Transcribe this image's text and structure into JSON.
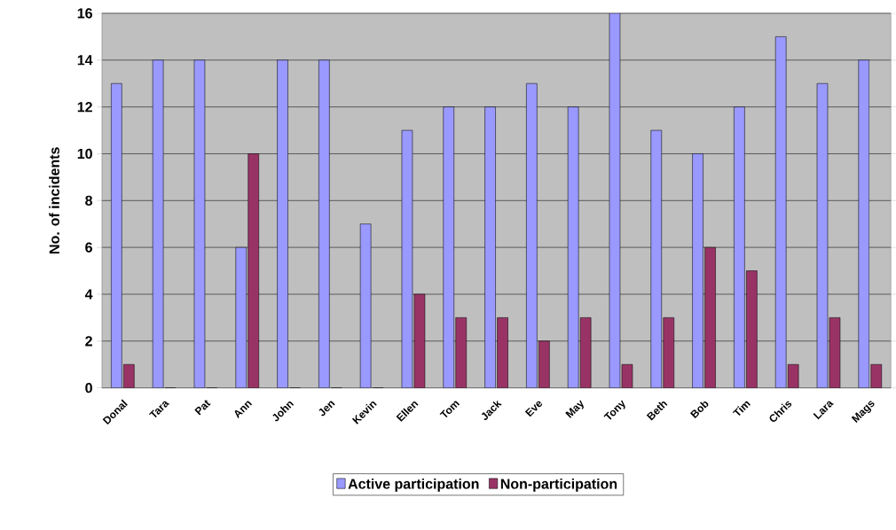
{
  "chart_data": {
    "type": "bar",
    "ylabel": "No. of incidents",
    "categories": [
      "Donal",
      "Tara",
      "Pat",
      "Ann",
      "John",
      "Jen",
      "Kevin",
      "Ellen",
      "Tom",
      "Jack",
      "Eve",
      "May",
      "Tony",
      "Beth",
      "Bob",
      "Tim",
      "Chris",
      "Lara",
      "Mags"
    ],
    "series": [
      {
        "name": "Active participation",
        "color": "#9999ff",
        "values": [
          13,
          14,
          14,
          6,
          14,
          14,
          7,
          11,
          12,
          12,
          13,
          12,
          16,
          11,
          10,
          12,
          15,
          13,
          14
        ]
      },
      {
        "name": "Non-participation",
        "color": "#993366",
        "values": [
          1,
          0,
          0,
          10,
          0,
          0,
          0,
          4,
          3,
          3,
          2,
          3,
          1,
          3,
          6,
          5,
          1,
          3,
          1
        ]
      }
    ],
    "ylim": [
      0,
      16
    ],
    "yticks": [
      0,
      2,
      4,
      6,
      8,
      10,
      12,
      14,
      16
    ],
    "grid": "y",
    "legend": "bottom"
  }
}
